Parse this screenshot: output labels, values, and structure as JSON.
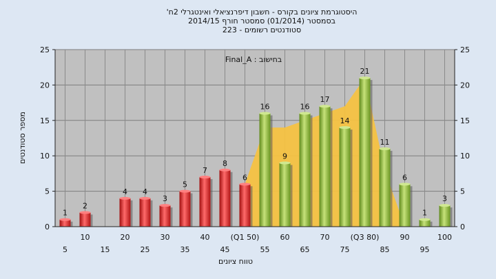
{
  "chart_data": {
    "type": "bar",
    "title": [
      "היסטוגרמת ציונים בקורס - חשבון דיפרנציאלי ואינטגרלי 2ח'",
      "בסמסטר  (01/2014)  סמסטר חורף 2014/15",
      "סטודנטים רשומים - 223"
    ],
    "annotation": "בחישוב : Final_A",
    "xlabel": "טווח ציונים",
    "ylabel": "מספר סטודנטים",
    "ylim": [
      0,
      25
    ],
    "y_ticks": [
      0,
      5,
      10,
      15,
      20,
      25
    ],
    "categories": [
      "5",
      "10",
      "15",
      "20",
      "25",
      "30",
      "35",
      "40",
      "45",
      "(Q1 50)",
      "55",
      "60",
      "65",
      "70",
      "75",
      "(Q3 80)",
      "85",
      "90",
      "95",
      "100"
    ],
    "values": [
      1,
      2,
      0,
      4,
      4,
      3,
      5,
      7,
      8,
      6,
      16,
      9,
      16,
      17,
      14,
      21,
      11,
      6,
      1,
      3
    ],
    "value_labels": [
      "1",
      "2",
      "",
      "4",
      "4",
      "3",
      "5",
      "7",
      "8",
      "6",
      "16",
      "9",
      "16",
      "17",
      "14",
      "21",
      "11",
      "6",
      "1",
      "3"
    ],
    "bar_colors": {
      "red": "#e02020",
      "green": "#8fbf3a"
    },
    "red_until_index": 9,
    "area_color": "#f5c242",
    "plot_background": "#c0c0c0",
    "grid": true,
    "legend": "none"
  }
}
